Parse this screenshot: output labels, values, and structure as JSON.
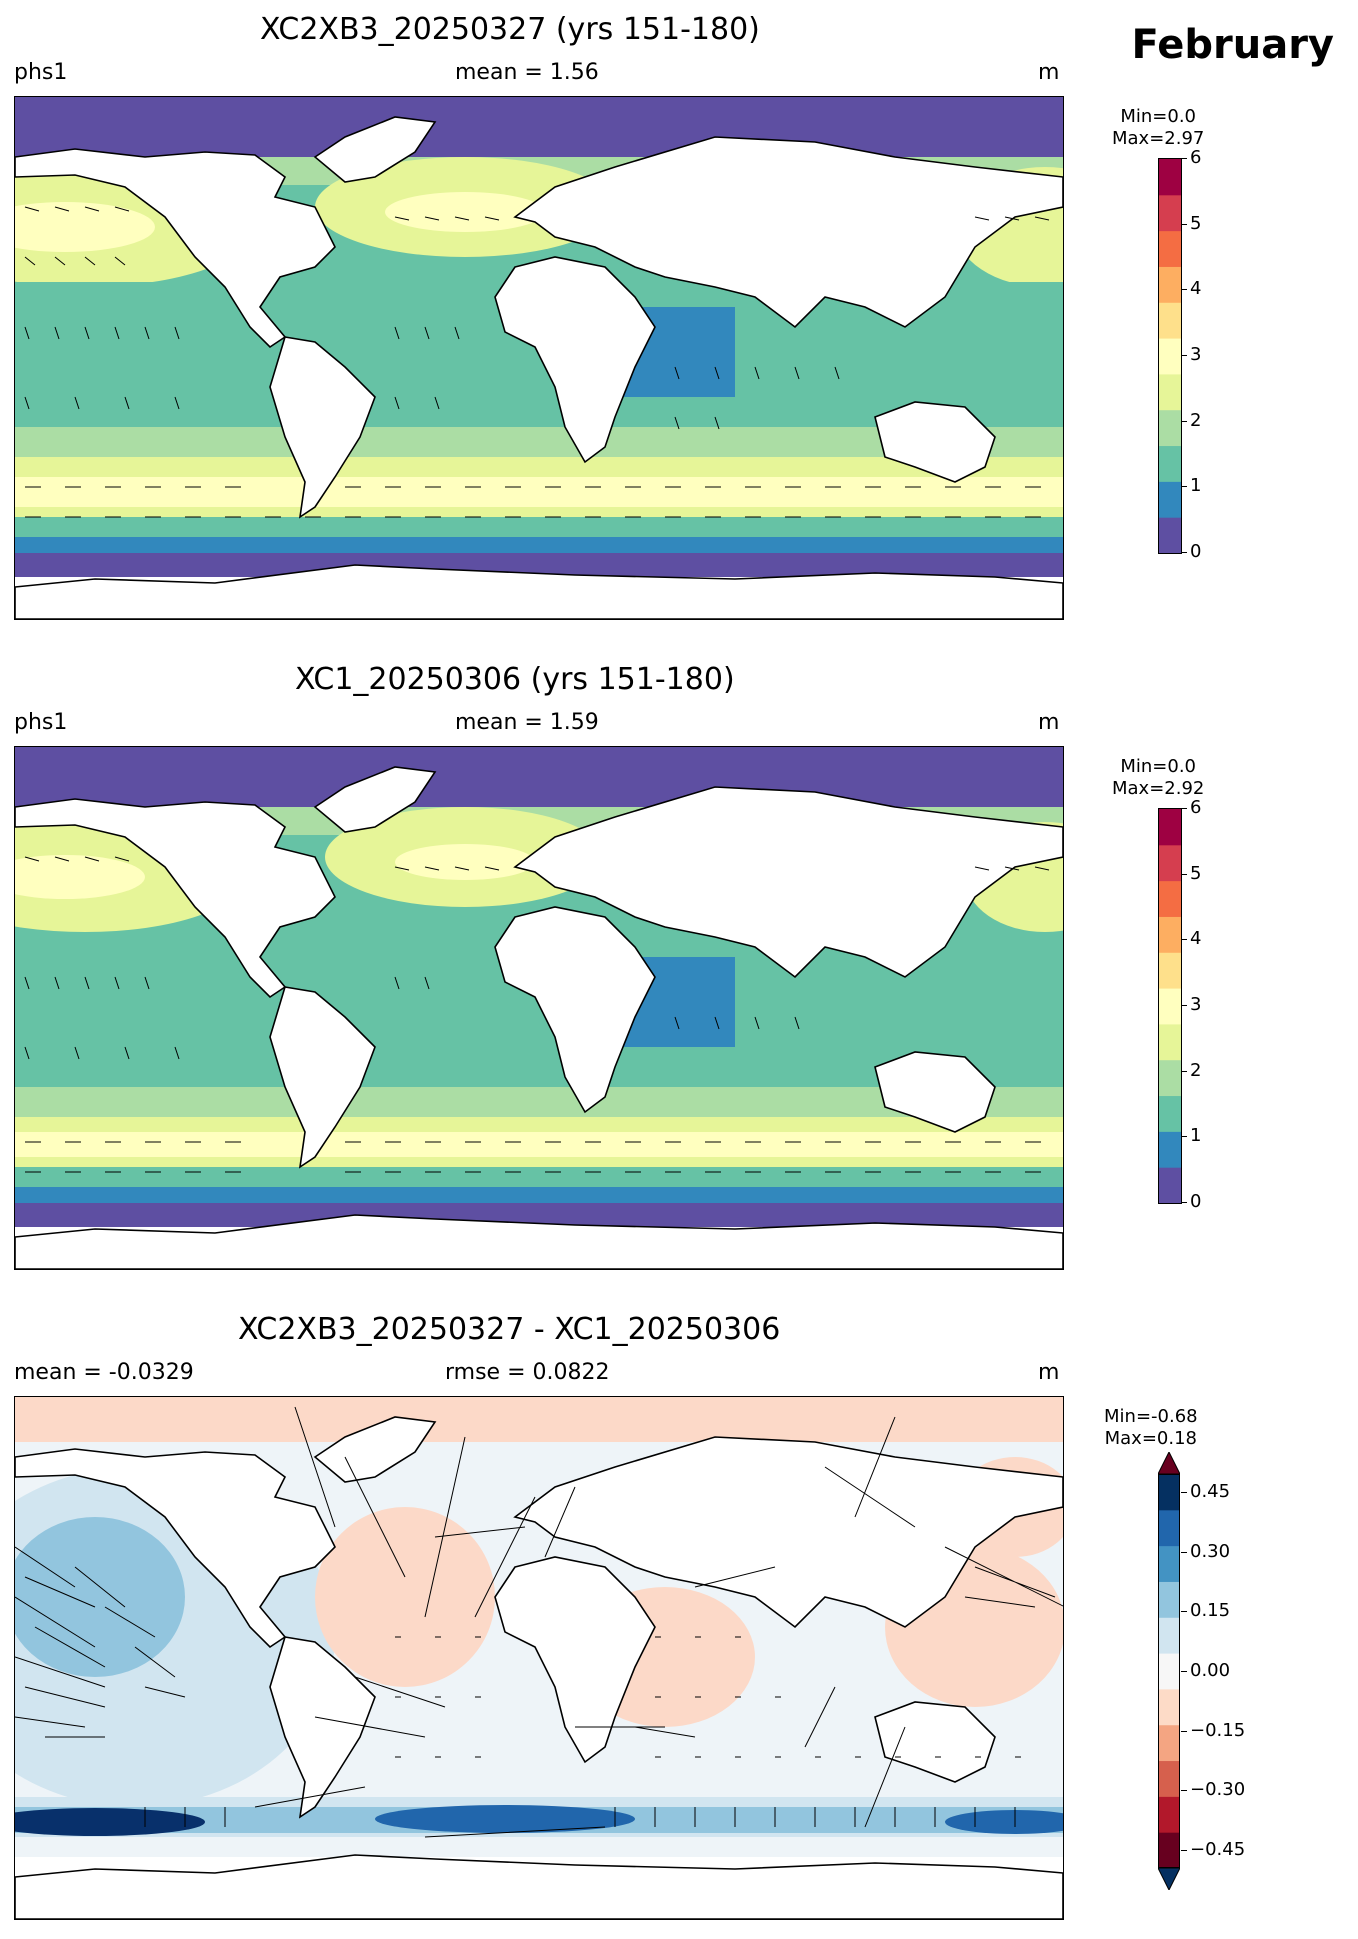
{
  "month_label": "February",
  "panels": [
    {
      "title": "XC2XB3_20250327 (yrs 151-180)",
      "left_label": "phs1",
      "center_label": "mean = 1.56",
      "right_label": "m",
      "min_label": "Min=0.0",
      "max_label": "Max=2.97",
      "colorbar": {
        "ticks": [
          "0",
          "1",
          "2",
          "3",
          "4",
          "5",
          "6"
        ],
        "colors": [
          "#5e4fa2",
          "#3288bd",
          "#66c2a5",
          "#abdda4",
          "#e6f598",
          "#ffffbf",
          "#fee08b",
          "#fdae61",
          "#f46d43",
          "#d53e4f",
          "#9e0142"
        ]
      }
    },
    {
      "title": "XC1_20250306 (yrs 151-180)",
      "left_label": "phs1",
      "center_label": "mean = 1.59",
      "right_label": "m",
      "min_label": "Min=0.0",
      "max_label": "Max=2.92",
      "colorbar": {
        "ticks": [
          "0",
          "1",
          "2",
          "3",
          "4",
          "5",
          "6"
        ],
        "colors": [
          "#5e4fa2",
          "#3288bd",
          "#66c2a5",
          "#abdda4",
          "#e6f598",
          "#ffffbf",
          "#fee08b",
          "#fdae61",
          "#f46d43",
          "#d53e4f",
          "#9e0142"
        ]
      }
    },
    {
      "title": "XC2XB3_20250327 - XC1_20250306",
      "left_label": "mean = -0.0329",
      "center_label": "rmse = 0.0822",
      "right_label": "m",
      "min_label": "Min=-0.68",
      "max_label": "Max=0.18",
      "colorbar": {
        "ticks": [
          "0.45",
          "0.30",
          "0.15",
          "0.00",
          "−0.15",
          "−0.30",
          "−0.45"
        ],
        "colors": [
          "#67001f",
          "#b2182b",
          "#d6604d",
          "#f4a582",
          "#fddbc7",
          "#f7f7f7",
          "#d1e5f0",
          "#92c5de",
          "#4393c3",
          "#2166ac",
          "#053061"
        ]
      }
    }
  ],
  "colors": {
    "land": "#ffffff",
    "coast": "#000000",
    "wave_low": "#5e4fa2",
    "wave_mid": "#66c2a5",
    "wave_high": "#ffffbf",
    "diff_pos": "#fcd9c8",
    "diff_neg": "#d1e5f0",
    "diff_strong_neg": "#08306b"
  }
}
